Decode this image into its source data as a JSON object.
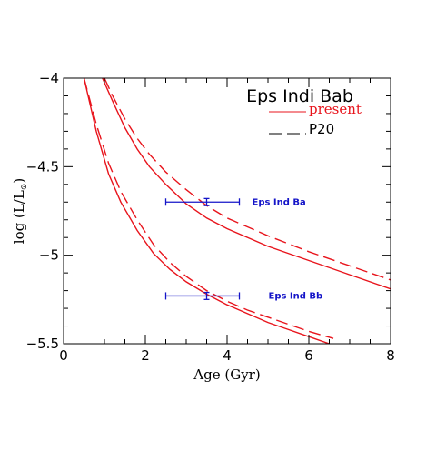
{
  "chart_data": {
    "type": "line",
    "title": "Eps Indi Bab",
    "xlabel": "Age (Gyr)",
    "ylabel": "log (L/L",
    "ylabel_sub": "⊙",
    "ylabel_close": ")",
    "xlim": [
      0,
      8
    ],
    "ylim": [
      -5.5,
      -4
    ],
    "xticks": [
      0,
      2,
      4,
      6,
      8
    ],
    "xtick_labels": [
      "0",
      "2",
      "4",
      "6",
      "8"
    ],
    "yticks": [
      -5.5,
      -5,
      -4.5,
      -4
    ],
    "ytick_labels": [
      "−5.5",
      "−5",
      "−4.5",
      "−4"
    ],
    "legend": {
      "position": "top-right",
      "entries": [
        {
          "label": "present",
          "style": "solid",
          "color": "#e8141c"
        },
        {
          "label": "P20",
          "style": "dashed",
          "color": "#000000"
        }
      ]
    },
    "series": [
      {
        "style": "solid",
        "color": "#e8141c",
        "x": [
          0.95,
          1.2,
          1.5,
          1.8,
          2.1,
          2.5,
          3.0,
          3.5,
          4.0,
          5.0,
          6.0,
          7.0,
          8.0
        ],
        "y": [
          -4.0,
          -4.13,
          -4.28,
          -4.4,
          -4.5,
          -4.6,
          -4.71,
          -4.79,
          -4.85,
          -4.95,
          -5.03,
          -5.11,
          -5.19
        ]
      },
      {
        "style": "dashed",
        "color": "#e8141c",
        "x": [
          1.0,
          1.2,
          1.5,
          1.8,
          2.1,
          2.5,
          3.0,
          3.5,
          4.0,
          5.0,
          6.0,
          7.0,
          8.0
        ],
        "y": [
          -4.0,
          -4.1,
          -4.23,
          -4.34,
          -4.43,
          -4.53,
          -4.63,
          -4.72,
          -4.79,
          -4.89,
          -4.98,
          -5.06,
          -5.14
        ]
      },
      {
        "style": "solid",
        "color": "#e8141c",
        "x": [
          0.5,
          0.8,
          1.1,
          1.4,
          1.8,
          2.2,
          2.6,
          3.0,
          3.5,
          4.0,
          4.5,
          5.0,
          5.5,
          6.0,
          6.5
        ],
        "y": [
          -4.0,
          -4.3,
          -4.54,
          -4.7,
          -4.86,
          -4.99,
          -5.08,
          -5.15,
          -5.22,
          -5.28,
          -5.33,
          -5.38,
          -5.42,
          -5.46,
          -5.5
        ]
      },
      {
        "style": "dashed",
        "color": "#e8141c",
        "x": [
          0.5,
          0.8,
          1.1,
          1.4,
          1.8,
          2.2,
          2.6,
          3.0,
          3.5,
          4.0,
          4.5,
          5.0,
          5.5,
          6.0,
          6.6
        ],
        "y": [
          -4.0,
          -4.26,
          -4.48,
          -4.64,
          -4.8,
          -4.94,
          -5.04,
          -5.12,
          -5.2,
          -5.26,
          -5.31,
          -5.35,
          -5.39,
          -5.43,
          -5.47
        ]
      }
    ],
    "points": [
      {
        "name": "Eps Ind Ba",
        "x": 3.5,
        "y": -4.7,
        "xerr": [
          2.5,
          4.3
        ],
        "yerr": 0.02,
        "color": "#1414c8"
      },
      {
        "name": "Eps Ind Bb",
        "x": 3.5,
        "y": -5.23,
        "xerr": [
          2.5,
          4.3
        ],
        "yerr": 0.02,
        "color": "#1414c8"
      }
    ]
  }
}
